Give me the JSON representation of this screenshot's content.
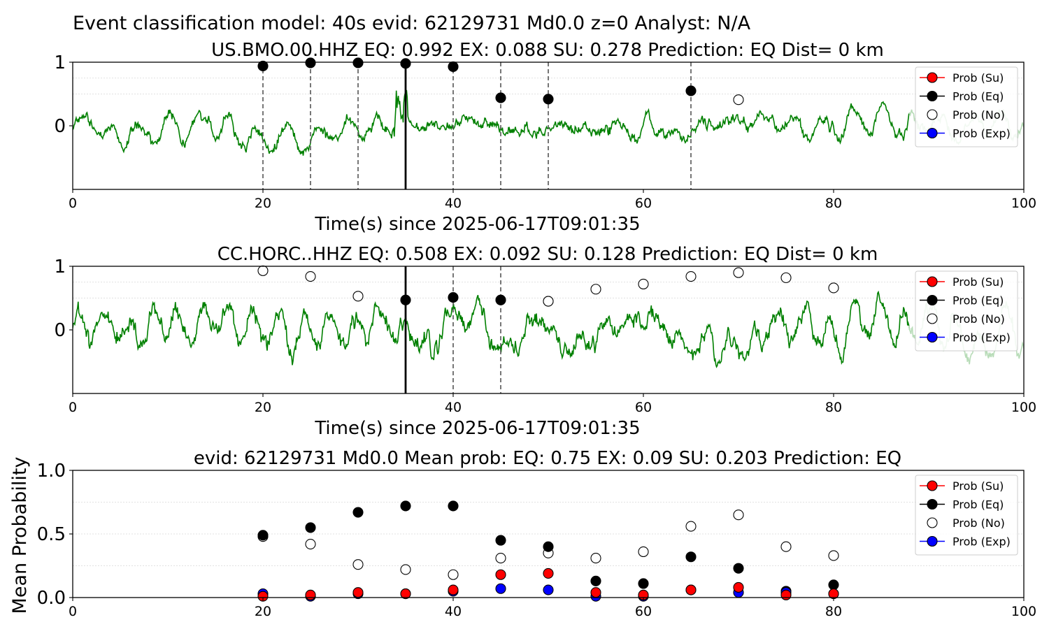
{
  "figure": {
    "suptitle": "Event classification model: 40s evid: 62129731 Md0.0 z=0 Analyst: N/A",
    "marker_colors": {
      "su": "#ff0000",
      "eq": "#000000",
      "no": "#ffffff",
      "exp": "#0000ff"
    },
    "waveform_color": "#008000",
    "waveform_faded_color": "#b8dcb8"
  },
  "legend": {
    "entries": [
      "Prob (Su)",
      "Prob (Eq)",
      "Prob (No)",
      "Prob (Exp)"
    ]
  },
  "chart_data": [
    {
      "type": "line",
      "title": "US.BMO.00.HHZ   EQ: 0.992  EX: 0.088  SU: 0.278   Prediction: EQ    Dist= 0 km",
      "xlabel": "Time(s) since 2025-06-17T09:01:35",
      "ylabel": "",
      "xlim": [
        0,
        100
      ],
      "ylim": [
        -1,
        1
      ],
      "xticks": [
        "0",
        "20",
        "40",
        "60",
        "80",
        "100"
      ],
      "yticks": [
        "0",
        "1"
      ],
      "ytick_values": [
        0,
        1
      ],
      "legend_position": "upper-right",
      "pick_time": 35,
      "window_lines": [
        20,
        25,
        30,
        40,
        45,
        50,
        65
      ],
      "waveform_fade_start": 88,
      "series": [
        {
          "name": "Prob (Eq)",
          "marker": "eq",
          "x": [
            20,
            25,
            30,
            35,
            40,
            45,
            50,
            65
          ],
          "y": [
            0.94,
            0.99,
            0.99,
            0.98,
            0.93,
            0.44,
            0.42,
            0.55
          ]
        },
        {
          "name": "Prob (No)",
          "marker": "no",
          "x": [
            70
          ],
          "y": [
            0.41
          ]
        }
      ]
    },
    {
      "type": "line",
      "title": "CC.HORC..HHZ   EQ: 0.508  EX: 0.092  SU: 0.128   Prediction: EQ    Dist= 0 km",
      "xlabel": "Time(s) since 2025-06-17T09:01:35",
      "ylabel": "",
      "xlim": [
        0,
        100
      ],
      "ylim": [
        -1,
        1
      ],
      "xticks": [
        "0",
        "20",
        "40",
        "60",
        "80",
        "100"
      ],
      "yticks": [
        "0",
        "1"
      ],
      "ytick_values": [
        0,
        1
      ],
      "legend_position": "upper-right",
      "pick_time": 35,
      "window_lines": [
        40,
        45
      ],
      "waveform_fade_start": 88,
      "series": [
        {
          "name": "Prob (Eq)",
          "marker": "eq",
          "x": [
            35,
            40,
            45,
            50
          ],
          "y": [
            0.47,
            0.51,
            0.47,
            0.45
          ]
        },
        {
          "name": "Prob (No)",
          "marker": "no",
          "x": [
            20,
            25,
            30,
            50,
            55,
            60,
            65,
            70,
            75,
            80
          ],
          "y": [
            0.93,
            0.84,
            0.53,
            0.45,
            0.64,
            0.72,
            0.84,
            0.9,
            0.82,
            0.66
          ]
        }
      ]
    },
    {
      "type": "scatter",
      "title": "evid: 62129731  Md0.0   Mean prob:   EQ: 0.75  EX: 0.09  SU: 0.203   Prediction: EQ",
      "xlabel": "",
      "ylabel": "Mean Probability",
      "xlim": [
        0,
        100
      ],
      "ylim": [
        0,
        1
      ],
      "xticks": [
        "0",
        "20",
        "40",
        "60",
        "80",
        "100"
      ],
      "yticks": [
        "0.0",
        "0.5",
        "1.0"
      ],
      "ytick_values": [
        0,
        0.5,
        1
      ],
      "legend_position": "upper-right",
      "series": [
        {
          "name": "Prob (No)",
          "marker": "no",
          "x": [
            20,
            25,
            30,
            35,
            40,
            45,
            50,
            55,
            60,
            65,
            70,
            75,
            80
          ],
          "y": [
            0.48,
            0.42,
            0.26,
            0.22,
            0.18,
            0.31,
            0.35,
            0.31,
            0.36,
            0.56,
            0.65,
            0.4,
            0.33
          ]
        },
        {
          "name": "Prob (Eq)",
          "marker": "eq",
          "x": [
            20,
            25,
            30,
            35,
            40,
            45,
            50,
            55,
            60,
            65,
            70,
            75,
            80
          ],
          "y": [
            0.49,
            0.55,
            0.67,
            0.72,
            0.72,
            0.45,
            0.4,
            0.13,
            0.11,
            0.32,
            0.23,
            0.05,
            0.1
          ]
        },
        {
          "name": "Prob (Exp)",
          "marker": "exp",
          "x": [
            20,
            25,
            30,
            35,
            40,
            45,
            50,
            55,
            60,
            65,
            70,
            75,
            80
          ],
          "y": [
            0.03,
            0.01,
            0.03,
            0.03,
            0.05,
            0.07,
            0.06,
            0.01,
            0.01,
            0.06,
            0.04,
            0.04,
            0.03
          ]
        },
        {
          "name": "Prob (Su)",
          "marker": "su",
          "x": [
            20,
            25,
            30,
            35,
            40,
            45,
            50,
            55,
            60,
            65,
            70,
            75,
            80
          ],
          "y": [
            0.01,
            0.02,
            0.04,
            0.03,
            0.06,
            0.18,
            0.19,
            0.04,
            0.02,
            0.06,
            0.08,
            0.02,
            0.03
          ]
        }
      ]
    }
  ]
}
